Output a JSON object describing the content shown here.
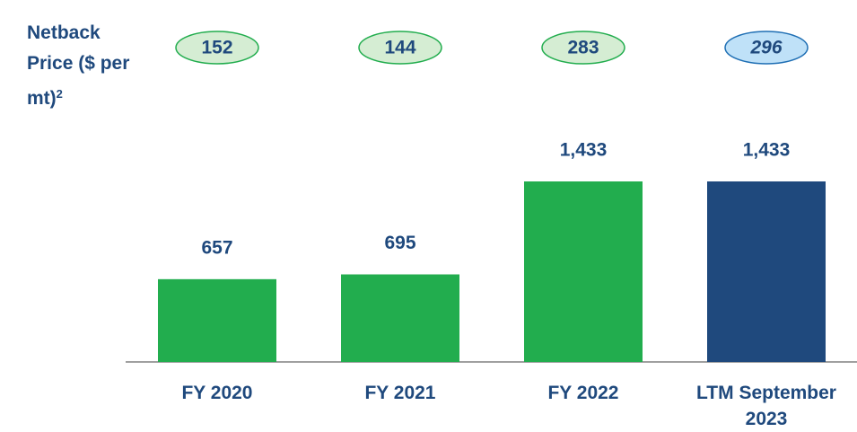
{
  "chart_data": {
    "type": "bar",
    "categories": [
      "FY 2020",
      "FY 2021",
      "FY 2022",
      "LTM September 2023"
    ],
    "values": [
      657,
      695,
      1433,
      1433
    ],
    "value_labels": [
      "657",
      "695",
      "1,433",
      "1,433"
    ],
    "colors": [
      "#22ad4e",
      "#22ad4e",
      "#22ad4e",
      "#1f497d"
    ],
    "netback": {
      "label": "Netback Price ($ per mt)",
      "footnote": "2",
      "values": [
        152,
        144,
        283,
        296
      ],
      "fills": [
        "#d5edd3",
        "#d5edd3",
        "#d5edd3",
        "#bfe1f8"
      ],
      "strokes": [
        "#22ad4e",
        "#22ad4e",
        "#22ad4e",
        "#1f6fb4"
      ],
      "italic": [
        false,
        false,
        false,
        true
      ]
    }
  }
}
